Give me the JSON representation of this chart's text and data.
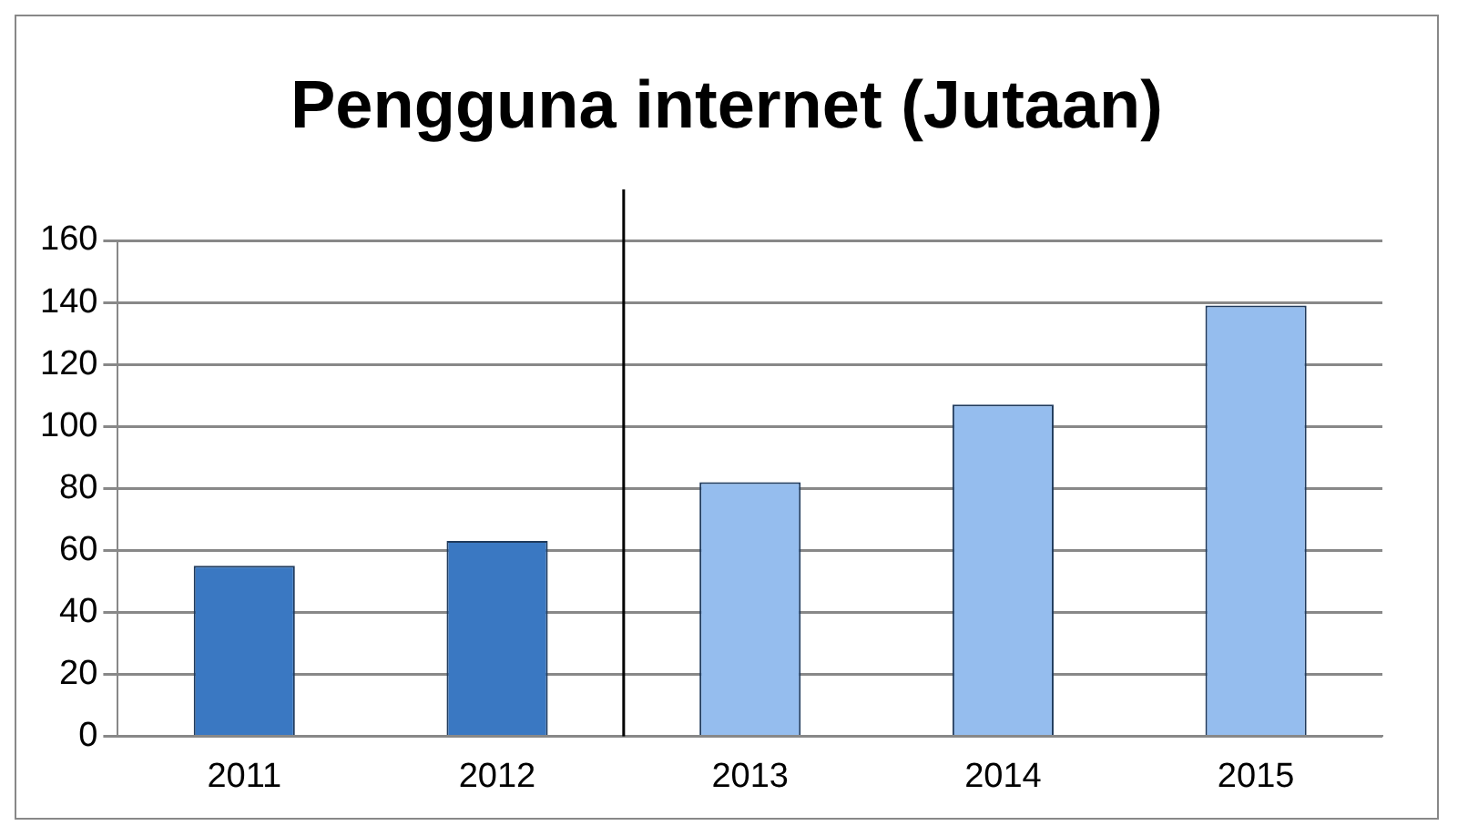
{
  "chart_data": {
    "type": "bar",
    "title": "Pengguna internet (Jutaan)",
    "x": [
      2011,
      2012,
      2013,
      2014,
      2015
    ],
    "values": [
      55,
      63,
      82,
      107,
      139
    ],
    "colors": [
      "#3a78c2",
      "#3a78c2",
      "#95bdee",
      "#95bdee",
      "#95bdee"
    ],
    "xlim": [
      2010.5,
      2015.5
    ],
    "xticks": [
      2011,
      2012,
      2013,
      2014,
      2015
    ],
    "ylim": [
      0,
      160
    ],
    "yticks": [
      0,
      20,
      40,
      60,
      80,
      100,
      120,
      140,
      160
    ],
    "grid": "y",
    "ref_lines": [
      {
        "axis": "x",
        "value": 2012.5,
        "color": "#000000"
      }
    ]
  }
}
